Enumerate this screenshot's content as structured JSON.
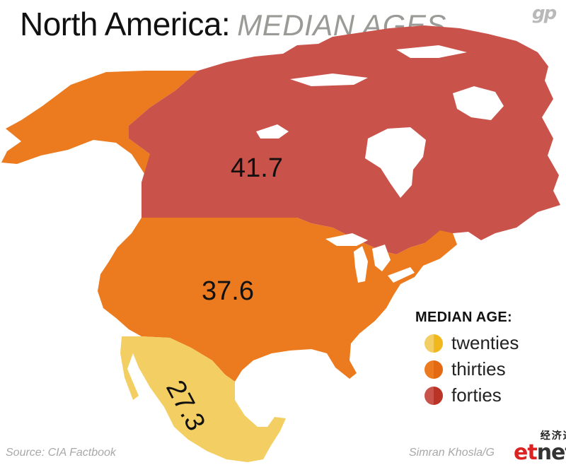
{
  "header": {
    "title": "North America:",
    "subtitle": "MEDIAN AGES",
    "logo": "gp"
  },
  "regions": [
    {
      "name": "Canada",
      "value": "41.7",
      "band": "forties"
    },
    {
      "name": "United States",
      "value": "37.6",
      "band": "thirties"
    },
    {
      "name": "Mexico",
      "value": "27.3",
      "band": "twenties"
    }
  ],
  "legend": {
    "title": "MEDIAN AGE:",
    "items": [
      {
        "label": "twenties",
        "color": "#f3cf63"
      },
      {
        "label": "thirties",
        "color": "#ec7a1e"
      },
      {
        "label": "forties",
        "color": "#c9524a"
      }
    ]
  },
  "colors": {
    "canada": "#c9524a",
    "usa": "#ec7a1e",
    "mexico": "#f3cf63",
    "lake": "#ffffff"
  },
  "footer": {
    "source": "Source: CIA Factbook",
    "credit": "Simran Khosla/G",
    "watermark_cn": "经济通",
    "watermark_et": "et",
    "watermark_net": "net"
  }
}
